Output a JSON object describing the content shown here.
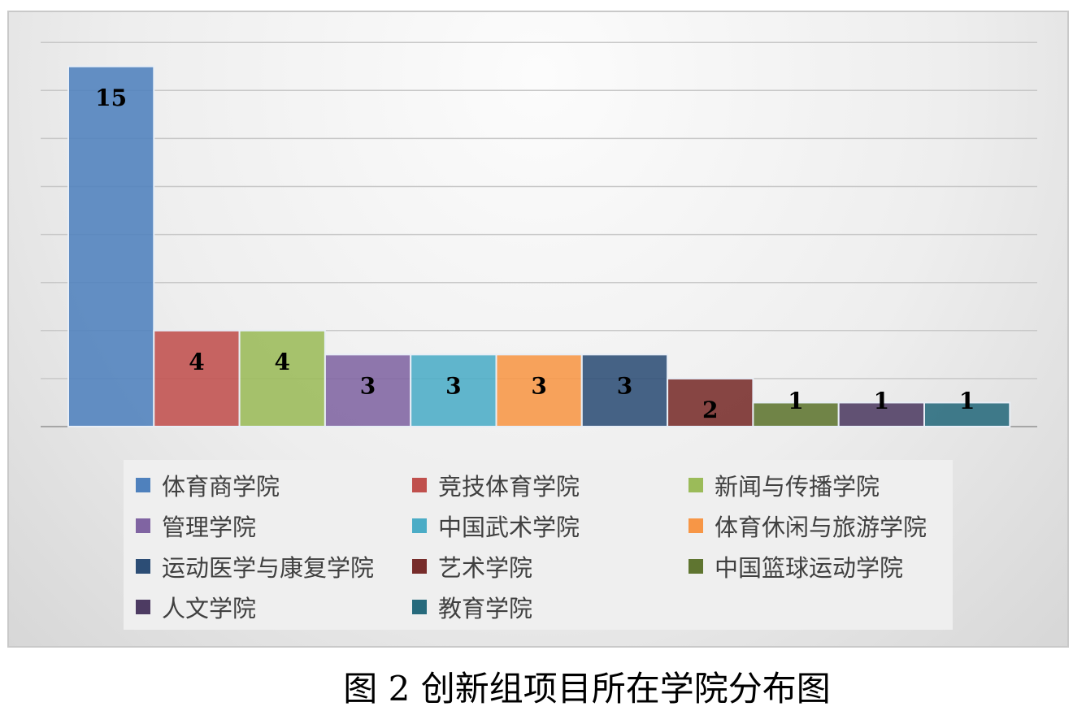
{
  "caption": "图 2  创新组项目所在学院分布图",
  "chart_data": {
    "type": "bar",
    "categories": [
      "体育商学院",
      "竞技体育学院",
      "新闻与传播学院",
      "管理学院",
      "中国武术学院",
      "体育休闲与旅游学院",
      "运动医学与康复学院",
      "艺术学院",
      "中国篮球运动学院",
      "人文学院",
      "教育学院"
    ],
    "values": [
      15,
      4,
      4,
      3,
      3,
      3,
      3,
      2,
      1,
      1,
      1
    ],
    "colors": [
      "#4f81bd",
      "#c0504d",
      "#9bbb59",
      "#8064a2",
      "#4bacc6",
      "#f79646",
      "#2c4d75",
      "#772c2a",
      "#5f7530",
      "#4d3b62",
      "#276a7c"
    ],
    "ylim": [
      0,
      16
    ],
    "gridlines": 8,
    "grid": true,
    "data_labels": [
      "15",
      "4",
      "4",
      "3",
      "3",
      "3",
      "3",
      "2",
      "1",
      "1",
      "1"
    ],
    "legend_position": "bottom"
  }
}
